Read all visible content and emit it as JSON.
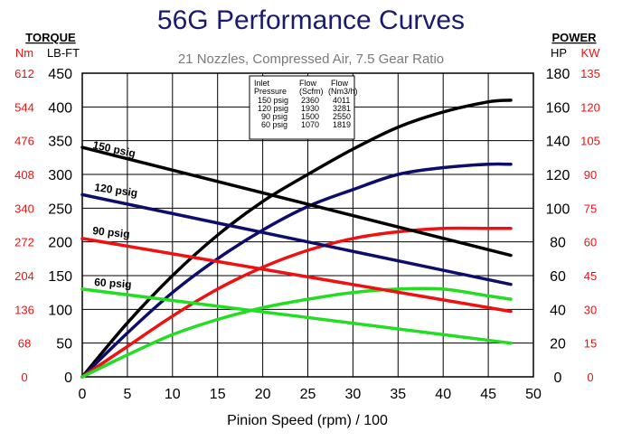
{
  "chart_data": {
    "type": "line",
    "title": "56G Performance Curves",
    "subtitle": "21 Nozzles, Compressed Air, 7.5 Gear Ratio",
    "xlabel": "Pinion Speed (rpm) / 100",
    "xlim": [
      0,
      50
    ],
    "x_ticks": [
      "0",
      "5",
      "10",
      "15",
      "20",
      "25",
      "30",
      "35",
      "40",
      "45",
      "50"
    ],
    "left_axis": {
      "header": "TORQUE",
      "units": [
        "Nm",
        "LB-FT"
      ],
      "ylim": [
        0,
        450
      ],
      "ticks": [
        "0",
        "50",
        "100",
        "150",
        "200",
        "250",
        "300",
        "350",
        "400",
        "450"
      ],
      "nm_ticks": [
        "0",
        "68",
        "136",
        "204",
        "272",
        "340",
        "408",
        "476",
        "544",
        "612"
      ]
    },
    "right_axis": {
      "header": "POWER",
      "units": [
        "HP",
        "KW"
      ],
      "ylim": [
        0,
        180
      ],
      "ticks": [
        "0",
        "20",
        "40",
        "60",
        "80",
        "100",
        "120",
        "140",
        "160",
        "180"
      ],
      "kw_ticks": [
        "0",
        "15",
        "30",
        "45",
        "60",
        "75",
        "90",
        "105",
        "120",
        "135"
      ]
    },
    "grid": true,
    "torque_series": [
      {
        "name": "150 psig",
        "color": "#000000",
        "x": [
          0,
          47.5
        ],
        "y": [
          340,
          180
        ]
      },
      {
        "name": "120 psig",
        "color": "#0d0d6b",
        "x": [
          0,
          47.5
        ],
        "y": [
          270,
          137
        ]
      },
      {
        "name": "90 psig",
        "color": "#ee1111",
        "x": [
          0,
          47.5
        ],
        "y": [
          205,
          97
        ]
      },
      {
        "name": "60 psig",
        "color": "#22dd22",
        "x": [
          0,
          47.5
        ],
        "y": [
          130,
          50
        ]
      }
    ],
    "power_series": [
      {
        "name": "150 psig",
        "color": "#000000",
        "x": [
          0,
          5,
          10,
          15,
          20,
          25,
          30,
          35,
          40,
          45,
          47.5
        ],
        "y": [
          0,
          32,
          60,
          84,
          104,
          120,
          135,
          148,
          157,
          163,
          164
        ]
      },
      {
        "name": "120 psig",
        "color": "#0d0d6b",
        "x": [
          0,
          5,
          10,
          15,
          20,
          25,
          30,
          35,
          40,
          45,
          47.5
        ],
        "y": [
          0,
          26,
          50,
          70,
          87,
          101,
          111,
          120,
          124,
          126,
          126
        ]
      },
      {
        "name": "90 psig",
        "color": "#ee1111",
        "x": [
          0,
          5,
          10,
          15,
          20,
          25,
          30,
          35,
          40,
          45,
          47.5
        ],
        "y": [
          0,
          18,
          36,
          52,
          65,
          75,
          82,
          86,
          88,
          88,
          88
        ]
      },
      {
        "name": "60 psig",
        "color": "#22dd22",
        "x": [
          0,
          5,
          10,
          15,
          20,
          25,
          30,
          35,
          40,
          45,
          47.5
        ],
        "y": [
          0,
          13,
          25,
          34,
          41,
          46,
          50,
          52,
          52,
          48,
          46
        ]
      }
    ],
    "flow_table": {
      "headers": [
        [
          "Inlet",
          "Flow",
          "Flow"
        ],
        [
          "Pressure",
          "(Scfm)",
          "(Nm3/h)"
        ]
      ],
      "rows": [
        [
          "150 psig",
          "2360",
          "4011"
        ],
        [
          "120 psig",
          "1930",
          "3281"
        ],
        [
          "90 psig",
          "1500",
          "2550"
        ],
        [
          "60 psig",
          "1070",
          "1819"
        ]
      ]
    }
  }
}
